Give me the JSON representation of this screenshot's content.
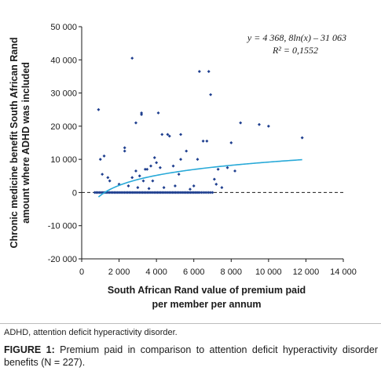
{
  "figure": {
    "footnote": "ADHD, attention deficit hyperactivity disorder.",
    "caption_label": "FIGURE 1:",
    "caption_text": "Premium paid in comparison to attention deficit hyperactivity disorder benefits (N = 227)."
  },
  "chart_data": {
    "type": "scatter",
    "title": "",
    "xlabel": [
      "South African Rand value of premium paid",
      "per member per annum"
    ],
    "ylabel": [
      "Chronic medicine benefit South African Rand",
      "amount where ADHD was included"
    ],
    "xlim": [
      0,
      14000
    ],
    "ylim": [
      -20000,
      50000
    ],
    "x_ticks": [
      0,
      2000,
      4000,
      6000,
      8000,
      10000,
      12000,
      14000
    ],
    "x_tick_labels": [
      "0",
      "2 000",
      "4 000",
      "6 000",
      "8 000",
      "10 000",
      "12 000",
      "14 000"
    ],
    "y_ticks": [
      -20000,
      -10000,
      0,
      10000,
      20000,
      30000,
      40000,
      50000
    ],
    "y_tick_labels": [
      "-20 000",
      "-10 000",
      "0",
      "10 000",
      "20 000",
      "30 000",
      "40 000",
      "50 000"
    ],
    "grid": false,
    "point_color": "#1f3f8f",
    "trend_color": "#27a9d8",
    "zero_line": "dashed",
    "trendline": {
      "type": "logarithmic",
      "a": 4368.8,
      "b": -31063,
      "x_range": [
        900,
        11800
      ]
    },
    "annotation": {
      "equation": "y = 4 368, 8ln(x) – 31 063",
      "r2": "R² = 0,1552"
    },
    "series": [
      {
        "points": [
          [
            900,
            25000
          ],
          [
            1000,
            10000
          ],
          [
            1100,
            5500
          ],
          [
            1200,
            11000
          ],
          [
            1400,
            4500
          ],
          [
            2300,
            13500
          ],
          [
            2300,
            12500
          ],
          [
            2700,
            40500
          ],
          [
            2700,
            4500
          ],
          [
            2900,
            6500
          ],
          [
            2900,
            21000
          ],
          [
            3100,
            5000
          ],
          [
            3200,
            24000
          ],
          [
            3200,
            23500
          ],
          [
            3300,
            3500
          ],
          [
            3400,
            7000
          ],
          [
            3500,
            7000
          ],
          [
            3700,
            8000
          ],
          [
            3800,
            3500
          ],
          [
            3900,
            10500
          ],
          [
            4000,
            9000
          ],
          [
            4100,
            24000
          ],
          [
            4200,
            7500
          ],
          [
            4300,
            17500
          ],
          [
            4600,
            17500
          ],
          [
            4700,
            17000
          ],
          [
            4900,
            8000
          ],
          [
            5200,
            5500
          ],
          [
            5300,
            17500
          ],
          [
            5300,
            10000
          ],
          [
            5600,
            12500
          ],
          [
            6200,
            10000
          ],
          [
            6300,
            36500
          ],
          [
            6500,
            15500
          ],
          [
            6700,
            15500
          ],
          [
            6800,
            36500
          ],
          [
            6900,
            29500
          ],
          [
            7100,
            4000
          ],
          [
            7200,
            2500
          ],
          [
            7300,
            7000
          ],
          [
            7800,
            7500
          ],
          [
            8000,
            15000
          ],
          [
            8200,
            6500
          ],
          [
            8500,
            21000
          ],
          [
            9500,
            20500
          ],
          [
            10000,
            20000
          ],
          [
            11800,
            16500
          ],
          [
            1500,
            3500
          ],
          [
            2000,
            2500
          ],
          [
            2500,
            2000
          ],
          [
            3000,
            1500
          ],
          [
            3600,
            1200
          ],
          [
            4400,
            1500
          ],
          [
            5000,
            2000
          ],
          [
            5800,
            1000
          ],
          [
            6000,
            2000
          ],
          [
            7500,
            1500
          ]
        ],
        "zero_points_x": [
          700,
          780,
          860,
          940,
          1020,
          1100,
          1180,
          1260,
          1340,
          1420,
          1500,
          1580,
          1660,
          1740,
          1820,
          1900,
          1980,
          2060,
          2140,
          2220,
          2300,
          2380,
          2460,
          2540,
          2620,
          2700,
          2780,
          2860,
          2940,
          3020,
          3100,
          3180,
          3260,
          3340,
          3420,
          3500,
          3580,
          3660,
          3740,
          3820,
          3900,
          3980,
          4060,
          4140,
          4220,
          4300,
          4380,
          4460,
          4540,
          4620,
          4700,
          4780,
          4860,
          4940,
          5020,
          5100,
          5180,
          5260,
          5340,
          5420,
          5500,
          5580,
          5660,
          5740,
          5820,
          5900,
          5980,
          6060,
          6140,
          6220,
          6300,
          6400,
          6500,
          6600,
          6700,
          6800,
          6900,
          7000
        ]
      }
    ]
  }
}
